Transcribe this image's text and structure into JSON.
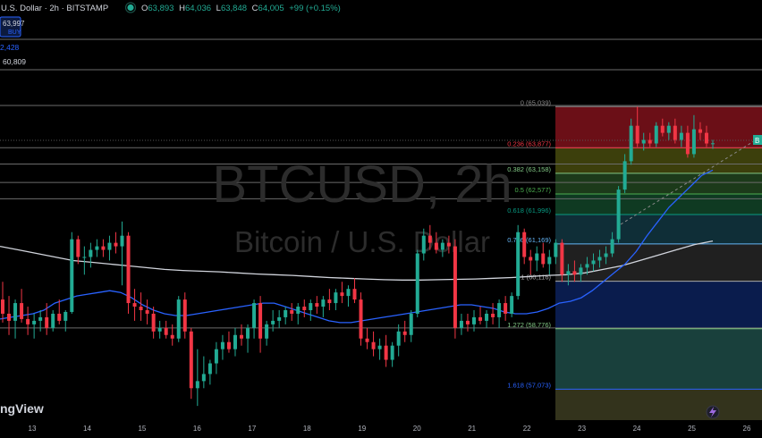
{
  "header": {
    "symbol_title": "U.S. Dollar · 2h · BITSTAMP",
    "open_label": "O",
    "open": "63,893",
    "high_label": "H",
    "high": "64,036",
    "low_label": "L",
    "low": "63,848",
    "close_label": "C",
    "close": "64,005",
    "change": "+99 (+0.15%)"
  },
  "buy_box": {
    "price": "63,997",
    "label": "BUY"
  },
  "left_levels": [
    "2,428",
    "60,809"
  ],
  "watermark": {
    "symbol": "BTCUSD, 2h",
    "name": "Bitcoin / U.S. Dollar"
  },
  "logo_text": "ngView",
  "price_tag": "B",
  "colors": {
    "background": "#000000",
    "up_candle": "#22ab94",
    "down_candle": "#f23645",
    "ma_fast": "#2962ff",
    "ma_slow": "#d1d4dc",
    "buy_box": "#2962ff"
  },
  "icons": {
    "lightning": "lightning-icon",
    "status_dot": "status-dot-icon"
  },
  "chart_data": {
    "type": "candlestick",
    "x_axis": {
      "ticks": [
        "13",
        "14",
        "15",
        "16",
        "17",
        "18",
        "19",
        "20",
        "21",
        "22",
        "23",
        "24",
        "25",
        "26"
      ]
    },
    "y_range": [
      56200,
      65500
    ],
    "fibonacci": [
      {
        "ratio": "0",
        "price": 65039,
        "label": "0 (65,039)",
        "color": "#888888",
        "fill": "#6b0f17"
      },
      {
        "ratio": "0.236",
        "price": 63877,
        "label": "0.236 (63,877)",
        "color": "#f23645",
        "fill": "#3c3f0c"
      },
      {
        "ratio": "0.382",
        "price": 63158,
        "label": "0.382 (63,158)",
        "color": "#81c784",
        "fill": "#1c3a1a"
      },
      {
        "ratio": "0.5",
        "price": 62577,
        "label": "0.5 (62,577)",
        "color": "#4caf50",
        "fill": "#0f3a22"
      },
      {
        "ratio": "0.618",
        "price": 61996,
        "label": "0.618 (61,996)",
        "color": "#089981",
        "fill": "#0f2e37"
      },
      {
        "ratio": "0.786",
        "price": 61169,
        "label": "0.786 (61,169)",
        "color": "#64b5f6",
        "fill": "#202020"
      },
      {
        "ratio": "1",
        "price": 60116,
        "label": "1 (60,116)",
        "color": "#aaaaaa",
        "fill": "#0a1c4d"
      },
      {
        "ratio": "1.272",
        "price": 58776,
        "label": "1.272 (58,776)",
        "color": "#81c784",
        "fill": "#19403c"
      },
      {
        "ratio": "1.618",
        "price": 57073,
        "label": "1.618 (57,073)",
        "color": "#2962ff",
        "fill": "#33331c"
      }
    ],
    "horizontal_levels": [
      65070,
      63880,
      63420,
      62900,
      62440,
      58800
    ],
    "candles": [
      {
        "o": 59600,
        "h": 60100,
        "l": 58950,
        "c": 59200
      },
      {
        "o": 59200,
        "h": 59700,
        "l": 58600,
        "c": 59000
      },
      {
        "o": 59000,
        "h": 59600,
        "l": 58500,
        "c": 59500
      },
      {
        "o": 59500,
        "h": 59900,
        "l": 58950,
        "c": 59050
      },
      {
        "o": 59050,
        "h": 59400,
        "l": 58600,
        "c": 58900
      },
      {
        "o": 58900,
        "h": 59200,
        "l": 58500,
        "c": 59000
      },
      {
        "o": 59000,
        "h": 59300,
        "l": 58700,
        "c": 59100
      },
      {
        "o": 59100,
        "h": 59500,
        "l": 58600,
        "c": 58800
      },
      {
        "o": 58800,
        "h": 59300,
        "l": 58700,
        "c": 59200
      },
      {
        "o": 59200,
        "h": 59600,
        "l": 58900,
        "c": 59000
      },
      {
        "o": 59000,
        "h": 59300,
        "l": 58700,
        "c": 59250
      },
      {
        "o": 59250,
        "h": 61500,
        "l": 59200,
        "c": 61300
      },
      {
        "o": 61300,
        "h": 61400,
        "l": 60600,
        "c": 60800
      },
      {
        "o": 60800,
        "h": 61100,
        "l": 60300,
        "c": 60800
      },
      {
        "o": 60800,
        "h": 61200,
        "l": 60500,
        "c": 61000
      },
      {
        "o": 61000,
        "h": 61300,
        "l": 60800,
        "c": 61100
      },
      {
        "o": 61100,
        "h": 61300,
        "l": 60800,
        "c": 61000
      },
      {
        "o": 61000,
        "h": 61400,
        "l": 60700,
        "c": 61200
      },
      {
        "o": 61200,
        "h": 61500,
        "l": 60900,
        "c": 61100
      },
      {
        "o": 61100,
        "h": 61800,
        "l": 60000,
        "c": 61400
      },
      {
        "o": 61400,
        "h": 61500,
        "l": 59200,
        "c": 59500
      },
      {
        "o": 59500,
        "h": 59900,
        "l": 59000,
        "c": 59400
      },
      {
        "o": 59400,
        "h": 59800,
        "l": 59000,
        "c": 59300
      },
      {
        "o": 59300,
        "h": 59600,
        "l": 58900,
        "c": 59200
      },
      {
        "o": 59200,
        "h": 59400,
        "l": 58500,
        "c": 58700
      },
      {
        "o": 58700,
        "h": 59000,
        "l": 58500,
        "c": 58800
      },
      {
        "o": 58800,
        "h": 59000,
        "l": 58500,
        "c": 58600
      },
      {
        "o": 58600,
        "h": 58900,
        "l": 58300,
        "c": 58500
      },
      {
        "o": 58500,
        "h": 59700,
        "l": 58400,
        "c": 59600
      },
      {
        "o": 59600,
        "h": 59800,
        "l": 58500,
        "c": 58700
      },
      {
        "o": 58700,
        "h": 58800,
        "l": 56800,
        "c": 57100
      },
      {
        "o": 57100,
        "h": 58200,
        "l": 56600,
        "c": 57300
      },
      {
        "o": 57300,
        "h": 58000,
        "l": 57100,
        "c": 57500
      },
      {
        "o": 57500,
        "h": 57900,
        "l": 57200,
        "c": 57800
      },
      {
        "o": 57800,
        "h": 58400,
        "l": 57500,
        "c": 58200
      },
      {
        "o": 58200,
        "h": 58600,
        "l": 57900,
        "c": 58400
      },
      {
        "o": 58400,
        "h": 58700,
        "l": 58100,
        "c": 58200
      },
      {
        "o": 58200,
        "h": 58800,
        "l": 58000,
        "c": 58600
      },
      {
        "o": 58600,
        "h": 58900,
        "l": 58300,
        "c": 58500
      },
      {
        "o": 58500,
        "h": 58900,
        "l": 58100,
        "c": 58800
      },
      {
        "o": 58800,
        "h": 59600,
        "l": 58500,
        "c": 59500
      },
      {
        "o": 59500,
        "h": 59700,
        "l": 58100,
        "c": 58500
      },
      {
        "o": 58500,
        "h": 59000,
        "l": 58300,
        "c": 58900
      },
      {
        "o": 58900,
        "h": 59300,
        "l": 58700,
        "c": 59000
      },
      {
        "o": 59000,
        "h": 59300,
        "l": 58800,
        "c": 59100
      },
      {
        "o": 59100,
        "h": 59400,
        "l": 58900,
        "c": 59300
      },
      {
        "o": 59300,
        "h": 59500,
        "l": 59000,
        "c": 59200
      },
      {
        "o": 59200,
        "h": 59500,
        "l": 58900,
        "c": 59400
      },
      {
        "o": 59400,
        "h": 59600,
        "l": 59100,
        "c": 59300
      },
      {
        "o": 59300,
        "h": 59600,
        "l": 59000,
        "c": 59500
      },
      {
        "o": 59500,
        "h": 59700,
        "l": 59200,
        "c": 59400
      },
      {
        "o": 59400,
        "h": 59700,
        "l": 59100,
        "c": 59600
      },
      {
        "o": 59600,
        "h": 59900,
        "l": 59300,
        "c": 59500
      },
      {
        "o": 59500,
        "h": 59900,
        "l": 59300,
        "c": 59800
      },
      {
        "o": 59800,
        "h": 60100,
        "l": 59500,
        "c": 59700
      },
      {
        "o": 59700,
        "h": 60000,
        "l": 59400,
        "c": 59900
      },
      {
        "o": 59900,
        "h": 60200,
        "l": 59500,
        "c": 59600
      },
      {
        "o": 59600,
        "h": 59800,
        "l": 58300,
        "c": 58500
      },
      {
        "o": 58500,
        "h": 58800,
        "l": 58200,
        "c": 58400
      },
      {
        "o": 58400,
        "h": 58700,
        "l": 58000,
        "c": 58200
      },
      {
        "o": 58200,
        "h": 58500,
        "l": 57900,
        "c": 58300
      },
      {
        "o": 58300,
        "h": 58600,
        "l": 57700,
        "c": 57900
      },
      {
        "o": 57900,
        "h": 58400,
        "l": 57700,
        "c": 58300
      },
      {
        "o": 58300,
        "h": 58900,
        "l": 58000,
        "c": 58700
      },
      {
        "o": 58700,
        "h": 59000,
        "l": 58400,
        "c": 58600
      },
      {
        "o": 58600,
        "h": 59300,
        "l": 58400,
        "c": 59200
      },
      {
        "o": 59200,
        "h": 61000,
        "l": 59100,
        "c": 60900
      },
      {
        "o": 60900,
        "h": 61600,
        "l": 60700,
        "c": 61400
      },
      {
        "o": 61400,
        "h": 61700,
        "l": 61000,
        "c": 61200
      },
      {
        "o": 61200,
        "h": 61500,
        "l": 60900,
        "c": 61000
      },
      {
        "o": 61000,
        "h": 61300,
        "l": 60800,
        "c": 61200
      },
      {
        "o": 61200,
        "h": 61400,
        "l": 60900,
        "c": 61100
      },
      {
        "o": 61100,
        "h": 61300,
        "l": 58500,
        "c": 58800
      },
      {
        "o": 58800,
        "h": 59200,
        "l": 58600,
        "c": 59000
      },
      {
        "o": 59000,
        "h": 59200,
        "l": 58700,
        "c": 58900
      },
      {
        "o": 58900,
        "h": 59300,
        "l": 58700,
        "c": 59100
      },
      {
        "o": 59100,
        "h": 59400,
        "l": 58900,
        "c": 59000
      },
      {
        "o": 59000,
        "h": 59300,
        "l": 58800,
        "c": 59200
      },
      {
        "o": 59200,
        "h": 59500,
        "l": 58900,
        "c": 59100
      },
      {
        "o": 59100,
        "h": 59600,
        "l": 58800,
        "c": 59500
      },
      {
        "o": 59500,
        "h": 59700,
        "l": 59000,
        "c": 59200
      },
      {
        "o": 59200,
        "h": 59800,
        "l": 59100,
        "c": 59700
      },
      {
        "o": 59700,
        "h": 61700,
        "l": 59600,
        "c": 61500
      },
      {
        "o": 61500,
        "h": 61600,
        "l": 60600,
        "c": 60800
      },
      {
        "o": 60800,
        "h": 61000,
        "l": 60300,
        "c": 60700
      },
      {
        "o": 60700,
        "h": 61100,
        "l": 60400,
        "c": 60900
      },
      {
        "o": 60900,
        "h": 61200,
        "l": 60500,
        "c": 60600
      },
      {
        "o": 60600,
        "h": 61000,
        "l": 60300,
        "c": 60800
      },
      {
        "o": 60800,
        "h": 61300,
        "l": 60600,
        "c": 61200
      },
      {
        "o": 61200,
        "h": 61300,
        "l": 60100,
        "c": 60300
      },
      {
        "o": 60300,
        "h": 60600,
        "l": 60000,
        "c": 60400
      },
      {
        "o": 60400,
        "h": 60700,
        "l": 60100,
        "c": 60300
      },
      {
        "o": 60300,
        "h": 60600,
        "l": 60100,
        "c": 60500
      },
      {
        "o": 60500,
        "h": 60800,
        "l": 60300,
        "c": 60600
      },
      {
        "o": 60600,
        "h": 60900,
        "l": 60400,
        "c": 60700
      },
      {
        "o": 60700,
        "h": 61000,
        "l": 60500,
        "c": 60800
      },
      {
        "o": 60800,
        "h": 61100,
        "l": 60600,
        "c": 60900
      },
      {
        "o": 60900,
        "h": 61500,
        "l": 60800,
        "c": 61300
      },
      {
        "o": 61300,
        "h": 62800,
        "l": 61200,
        "c": 62700
      },
      {
        "o": 62700,
        "h": 63700,
        "l": 62600,
        "c": 63500
      },
      {
        "o": 63500,
        "h": 64700,
        "l": 63400,
        "c": 64500
      },
      {
        "o": 64500,
        "h": 65040,
        "l": 63900,
        "c": 64000
      },
      {
        "o": 64000,
        "h": 64300,
        "l": 63800,
        "c": 64100
      },
      {
        "o": 64100,
        "h": 64300,
        "l": 63900,
        "c": 64000
      },
      {
        "o": 64000,
        "h": 64600,
        "l": 63900,
        "c": 64500
      },
      {
        "o": 64500,
        "h": 64700,
        "l": 64200,
        "c": 64300
      },
      {
        "o": 64300,
        "h": 64600,
        "l": 64100,
        "c": 64500
      },
      {
        "o": 64500,
        "h": 64700,
        "l": 64000,
        "c": 64100
      },
      {
        "o": 64100,
        "h": 64500,
        "l": 63900,
        "c": 64300
      },
      {
        "o": 64300,
        "h": 64500,
        "l": 63600,
        "c": 63700
      },
      {
        "o": 63700,
        "h": 64800,
        "l": 63600,
        "c": 64400
      },
      {
        "o": 64400,
        "h": 64600,
        "l": 64100,
        "c": 64300
      },
      {
        "o": 64300,
        "h": 64500,
        "l": 63900,
        "c": 64000
      },
      {
        "o": 64000,
        "h": 64100,
        "l": 63850,
        "c": 64005
      }
    ],
    "ma_fast": [
      59050,
      59100,
      59150,
      59200,
      59300,
      59500,
      59600,
      59700,
      59750,
      59800,
      59850,
      59800,
      59650,
      59450,
      59300,
      59200,
      59150,
      59150,
      59200,
      59250,
      59300,
      59350,
      59400,
      59450,
      59500,
      59500,
      59400,
      59300,
      59200,
      59100,
      59000,
      58950,
      58950,
      59000,
      59050,
      59100,
      59150,
      59200,
      59250,
      59300,
      59350,
      59400,
      59450,
      59450,
      59400,
      59350,
      59250,
      59200,
      59200,
      59250,
      59350,
      59500,
      59550,
      59650,
      59850,
      60100,
      60350,
      60600,
      60950,
      61400,
      61800,
      62200,
      62500,
      62800,
      63100,
      63250
    ],
    "ma_slow": [
      61100,
      61000,
      60900,
      60800,
      60700,
      60650,
      60600,
      60550,
      60500,
      60450,
      60420,
      60400,
      60380,
      60350,
      60320,
      60300,
      60280,
      60250,
      60220,
      60200,
      60180,
      60160,
      60150,
      60150,
      60160,
      60170,
      60180,
      60200,
      60220,
      60250,
      60280,
      60300,
      60350,
      60450,
      60550,
      60700,
      60850,
      61000,
      61150,
      61250
    ]
  }
}
